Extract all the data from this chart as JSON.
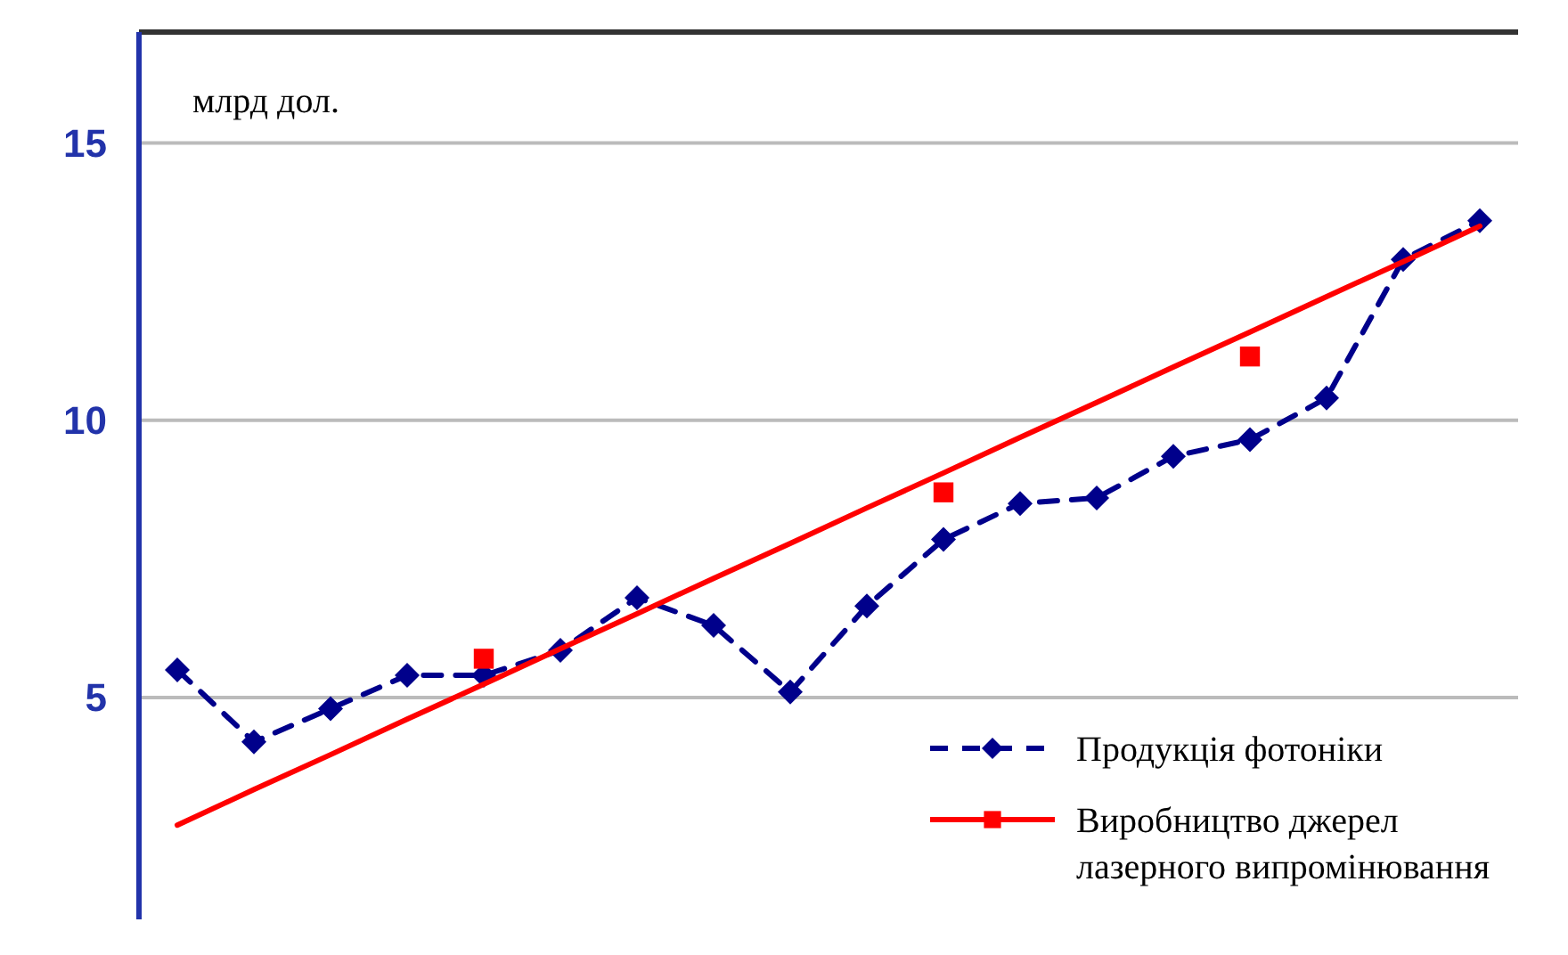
{
  "chart_data": {
    "type": "line",
    "ylabel": "млрд дол.",
    "categories": [
      null,
      null,
      null,
      null,
      null,
      null,
      null,
      null,
      null,
      null,
      null,
      null,
      null,
      null,
      null,
      null,
      null,
      null
    ],
    "ylim": [
      1,
      17
    ],
    "yticks": [
      5,
      10,
      15
    ],
    "grid": "y",
    "legend": "bottom right",
    "series": [
      {
        "name": "Продукція фотоніки",
        "color": "#00008b",
        "marker": "diamond",
        "line_style": "dashed",
        "values": [
          5.5,
          4.2,
          4.8,
          5.4,
          5.4,
          5.85,
          6.8,
          6.3,
          5.1,
          6.65,
          7.85,
          8.5,
          8.6,
          9.35,
          9.65,
          10.4,
          12.9,
          13.6
        ]
      },
      {
        "name": "Виробництво джерел лазерного випромінювання",
        "type": "scatter",
        "color": "#ff0000",
        "marker": "square",
        "values": [
          null,
          null,
          null,
          null,
          5.7,
          null,
          null,
          null,
          null,
          null,
          8.7,
          null,
          null,
          null,
          11.15,
          null,
          null,
          null
        ]
      },
      {
        "color": "#ff0000",
        "marker": "none",
        "line_style": "solid",
        "values": [
          2.7,
          3.34,
          3.97,
          4.61,
          5.24,
          5.88,
          6.51,
          7.15,
          7.78,
          8.42,
          9.05,
          9.69,
          10.32,
          10.96,
          11.59,
          12.23,
          12.86,
          13.5
        ]
      }
    ]
  }
}
